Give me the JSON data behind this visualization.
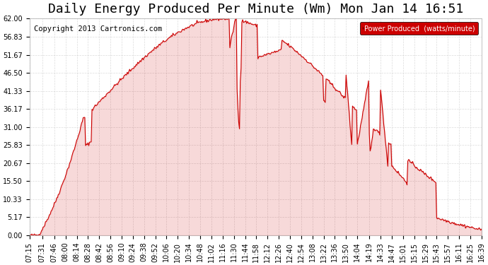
{
  "title": "Daily Energy Produced Per Minute (Wm) Mon Jan 14 16:51",
  "copyright": "Copyright 2013 Cartronics.com",
  "legend_label": "Power Produced  (watts/minute)",
  "legend_bg": "#cc0000",
  "legend_text_color": "#ffffff",
  "line_color": "#cc0000",
  "bg_color": "#ffffff",
  "grid_color": "#cccccc",
  "yticks": [
    0.0,
    5.17,
    10.33,
    15.5,
    20.67,
    25.83,
    31.0,
    36.17,
    41.33,
    46.5,
    51.67,
    56.83,
    62.0
  ],
  "ylim": [
    0,
    62.0
  ],
  "x_labels": [
    "07:15",
    "07:31",
    "07:46",
    "08:00",
    "08:14",
    "08:28",
    "08:42",
    "08:56",
    "09:10",
    "09:24",
    "09:38",
    "09:52",
    "10:06",
    "10:20",
    "10:34",
    "10:48",
    "11:02",
    "11:16",
    "11:30",
    "11:44",
    "11:58",
    "12:12",
    "12:26",
    "12:40",
    "12:54",
    "13:08",
    "13:22",
    "13:36",
    "13:50",
    "14:04",
    "14:19",
    "14:33",
    "14:47",
    "15:01",
    "15:15",
    "15:29",
    "15:43",
    "15:57",
    "16:11",
    "16:25",
    "16:39"
  ],
  "title_fontsize": 13,
  "axis_fontsize": 7,
  "copyright_fontsize": 7.5
}
